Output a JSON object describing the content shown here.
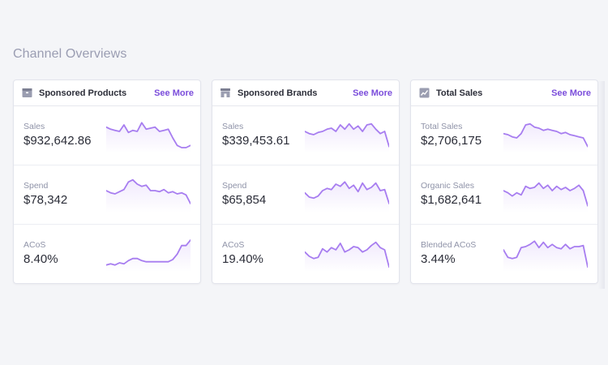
{
  "page": {
    "title": "Channel Overviews"
  },
  "colors": {
    "accent": "#7b4ddb",
    "spark_line": "#a77df0"
  },
  "cards": [
    {
      "name": "Sponsored Products",
      "icon": "box-icon",
      "link": "See More",
      "metrics": [
        {
          "label": "Sales",
          "value": "$932,642.86",
          "trend": [
            8,
            10,
            11,
            12,
            6,
            13,
            11,
            12,
            4,
            10,
            9,
            8,
            12,
            11,
            10,
            18,
            25,
            27,
            27,
            25
          ]
        },
        {
          "label": "Spend",
          "value": "$78,342",
          "trend": [
            12,
            14,
            15,
            13,
            11,
            4,
            2,
            6,
            8,
            7,
            12,
            12,
            13,
            11,
            14,
            13,
            15,
            14,
            16,
            24
          ]
        },
        {
          "label": "ACoS",
          "value": "8.40%",
          "trend": [
            26,
            25,
            26,
            24,
            25,
            22,
            20,
            20,
            22,
            23,
            23,
            23,
            23,
            23,
            23,
            21,
            16,
            8,
            8,
            3
          ]
        }
      ]
    },
    {
      "name": "Sponsored Brands",
      "icon": "storefront-icon",
      "link": "See More",
      "metrics": [
        {
          "label": "Sales",
          "value": "$339,453.61",
          "trend": [
            12,
            14,
            15,
            13,
            12,
            10,
            9,
            12,
            6,
            10,
            5,
            10,
            7,
            12,
            6,
            5,
            10,
            14,
            12,
            26
          ]
        },
        {
          "label": "Spend",
          "value": "$65,854",
          "trend": [
            14,
            18,
            19,
            17,
            12,
            10,
            11,
            6,
            8,
            4,
            10,
            7,
            13,
            5,
            11,
            9,
            5,
            12,
            11,
            24
          ]
        },
        {
          "label": "ACoS",
          "value": "19.40%",
          "trend": [
            14,
            18,
            20,
            19,
            11,
            14,
            10,
            12,
            6,
            14,
            12,
            9,
            10,
            14,
            12,
            8,
            5,
            10,
            12,
            28
          ]
        }
      ]
    },
    {
      "name": "Total Sales",
      "icon": "trend-chart-icon",
      "link": "See More",
      "metrics": [
        {
          "label": "Total Sales",
          "value": "$2,706,175",
          "trend": [
            14,
            15,
            17,
            18,
            14,
            6,
            5,
            8,
            9,
            11,
            10,
            11,
            12,
            14,
            13,
            15,
            16,
            17,
            18,
            26
          ]
        },
        {
          "label": "Organic Sales",
          "value": "$1,682,641",
          "trend": [
            12,
            14,
            17,
            14,
            16,
            8,
            10,
            9,
            5,
            10,
            7,
            12,
            8,
            11,
            9,
            12,
            10,
            7,
            12,
            26
          ]
        },
        {
          "label": "Blended ACoS",
          "value": "3.44%",
          "trend": [
            12,
            19,
            20,
            19,
            10,
            9,
            7,
            4,
            10,
            5,
            10,
            7,
            10,
            11,
            7,
            11,
            9,
            9,
            8,
            28
          ]
        }
      ]
    }
  ]
}
